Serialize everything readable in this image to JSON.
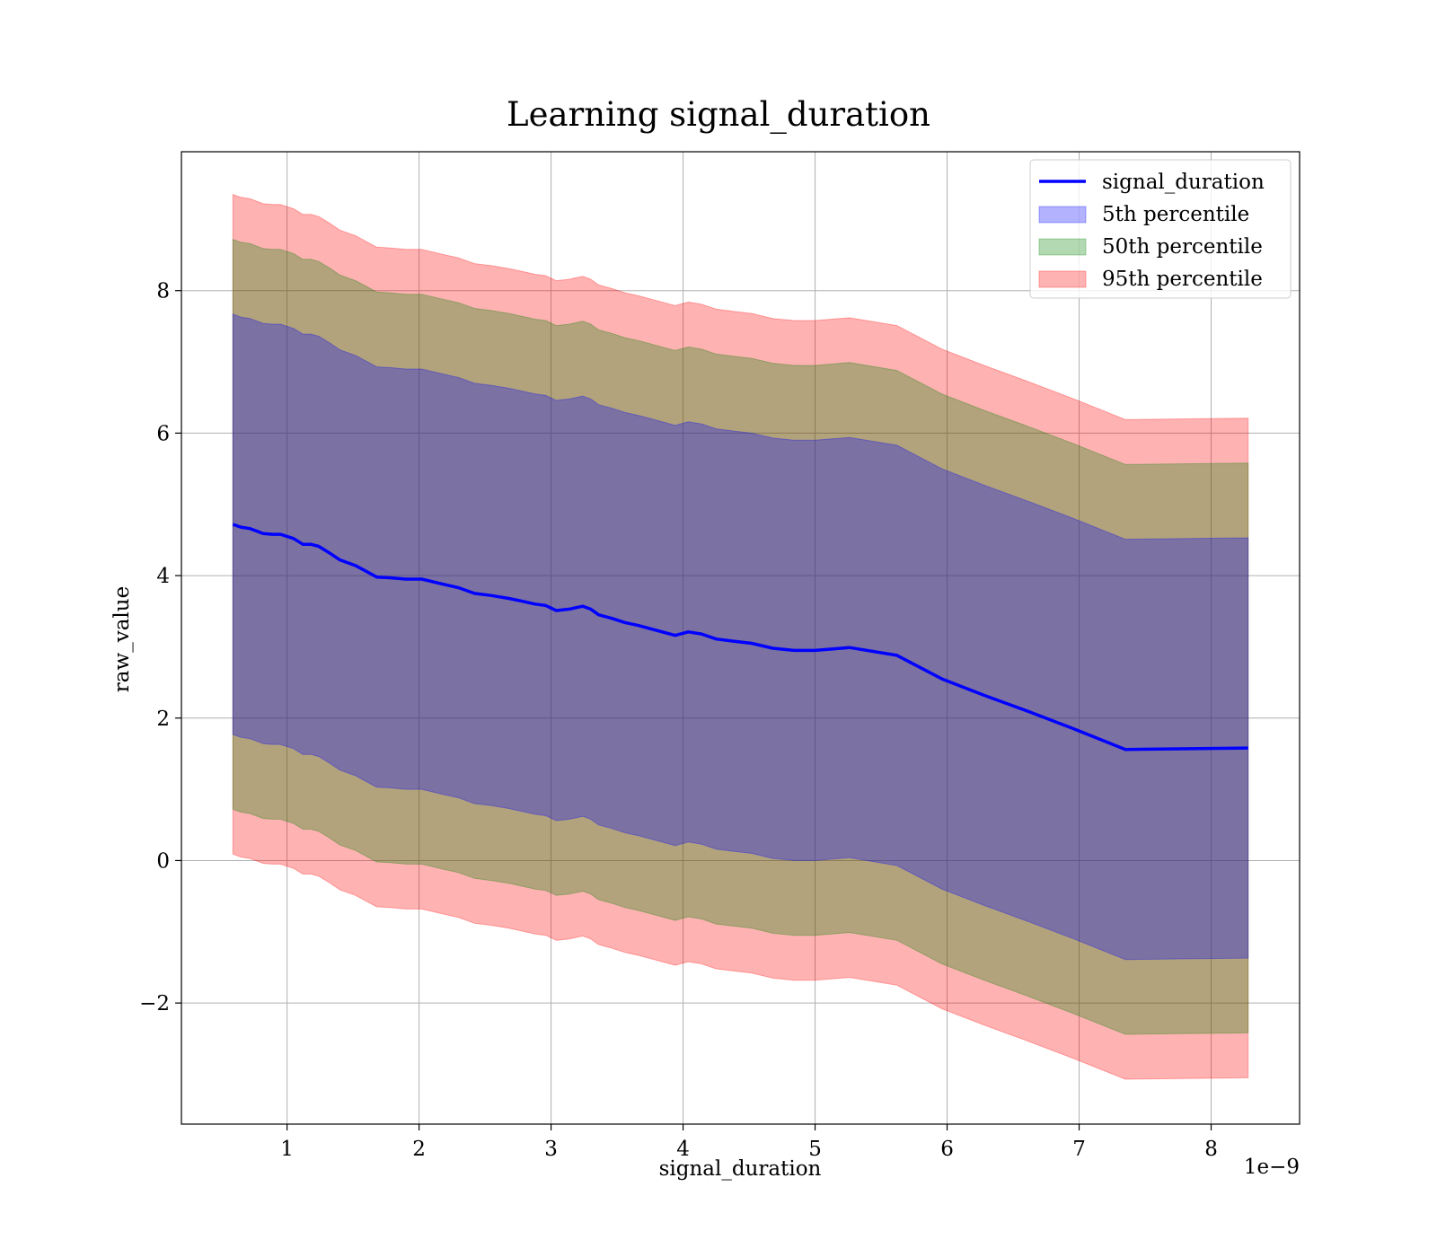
{
  "chart_data": {
    "type": "area",
    "title": "Learning signal_duration",
    "xlabel": "signal_duration",
    "ylabel": "raw_value",
    "x_offset_label": "1e−9",
    "xlim": [
      0.2,
      8.67
    ],
    "ylim": [
      -3.7,
      9.95
    ],
    "x_ticks": [
      {
        "value": 1,
        "label": "1"
      },
      {
        "value": 2,
        "label": "2"
      },
      {
        "value": 3,
        "label": "3"
      },
      {
        "value": 4,
        "label": "4"
      },
      {
        "value": 5,
        "label": "5"
      },
      {
        "value": 6,
        "label": "6"
      },
      {
        "value": 7,
        "label": "7"
      },
      {
        "value": 8,
        "label": "8"
      }
    ],
    "y_ticks": [
      {
        "value": -2,
        "label": "−2"
      },
      {
        "value": 0,
        "label": "0"
      },
      {
        "value": 2,
        "label": "2"
      },
      {
        "value": 4,
        "label": "4"
      },
      {
        "value": 6,
        "label": "6"
      },
      {
        "value": 8,
        "label": "8"
      }
    ],
    "grid": true,
    "legend_position": "top-right",
    "x": [
      0.59,
      0.65,
      0.72,
      0.82,
      0.89,
      0.95,
      1.05,
      1.12,
      1.18,
      1.24,
      1.32,
      1.4,
      1.52,
      1.62,
      1.68,
      1.78,
      1.9,
      2.02,
      2.18,
      2.3,
      2.42,
      2.55,
      2.68,
      2.78,
      2.88,
      2.96,
      3.04,
      3.14,
      3.24,
      3.3,
      3.36,
      3.46,
      3.56,
      3.66,
      3.76,
      3.86,
      3.94,
      4.04,
      4.14,
      4.25,
      4.38,
      4.52,
      4.68,
      4.84,
      5.0,
      5.26,
      5.62,
      5.96,
      6.28,
      6.62,
      6.96,
      7.35,
      8.28
    ],
    "center": [
      4.72,
      4.68,
      4.66,
      4.59,
      4.58,
      4.58,
      4.52,
      4.44,
      4.44,
      4.41,
      4.32,
      4.22,
      4.14,
      4.04,
      3.98,
      3.97,
      3.95,
      3.95,
      3.88,
      3.83,
      3.75,
      3.72,
      3.68,
      3.64,
      3.6,
      3.58,
      3.51,
      3.53,
      3.57,
      3.53,
      3.45,
      3.4,
      3.34,
      3.3,
      3.25,
      3.2,
      3.16,
      3.21,
      3.18,
      3.11,
      3.08,
      3.05,
      2.98,
      2.95,
      2.95,
      2.99,
      2.88,
      2.55,
      2.32,
      2.09,
      1.85,
      1.56,
      1.58
    ],
    "series": [
      {
        "name": "5th percentile",
        "color": "#0000ff",
        "half_width": 2.95
      },
      {
        "name": "50th percentile",
        "color": "#008000",
        "half_width": 4.0
      },
      {
        "name": "95th percentile",
        "color": "#ff0000",
        "half_width": 4.63
      }
    ],
    "line": {
      "name": "signal_duration",
      "color": "#0000ff"
    }
  }
}
